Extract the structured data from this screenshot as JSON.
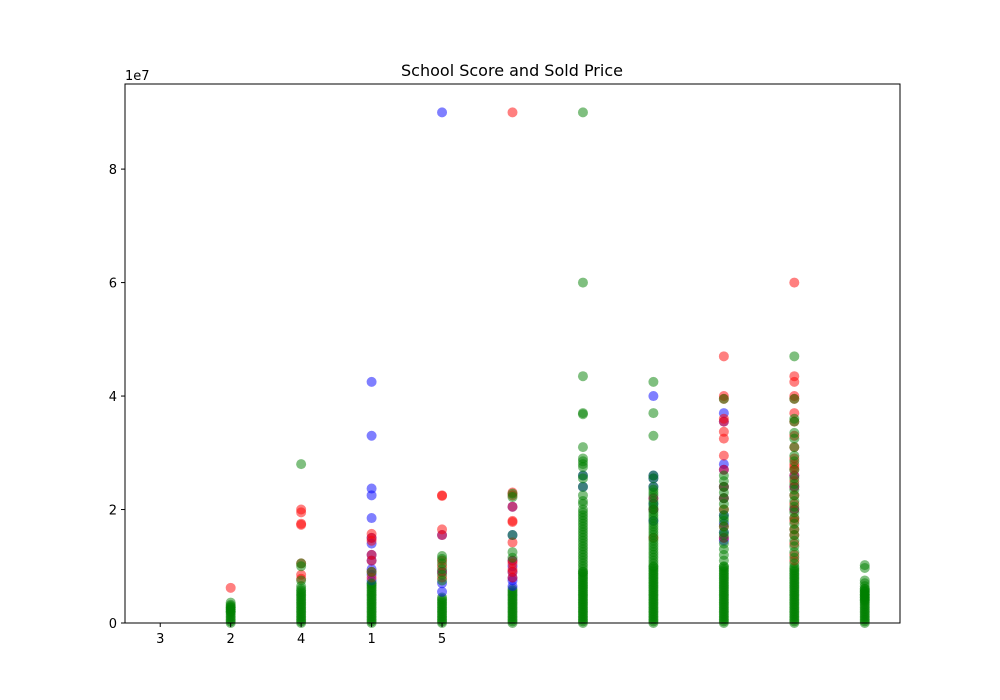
{
  "chart_data": {
    "type": "scatter",
    "title": "School Score and Sold Price",
    "xlabel": "",
    "ylabel": "",
    "y_offset_label": "1e7",
    "xlim": [
      -0.5,
      10.5
    ],
    "ylim": [
      0,
      95000000
    ],
    "x_ticks": [
      {
        "x": 0,
        "label": "3"
      },
      {
        "x": 1,
        "label": "2"
      },
      {
        "x": 2,
        "label": "4"
      },
      {
        "x": 3,
        "label": "1"
      },
      {
        "x": 4,
        "label": "5"
      }
    ],
    "y_ticks": [
      {
        "y": 0,
        "label": "0"
      },
      {
        "y": 20000000,
        "label": "2"
      },
      {
        "y": 40000000,
        "label": "4"
      },
      {
        "y": 60000000,
        "label": "6"
      },
      {
        "y": 80000000,
        "label": "8"
      }
    ],
    "grid": false,
    "series": [
      {
        "color": "#0000ff",
        "opacity": 0.5,
        "points": [
          [
            3,
            42500000
          ],
          [
            3,
            33000000
          ],
          [
            3,
            23700000
          ],
          [
            3,
            22500000
          ],
          [
            3,
            18500000
          ],
          [
            3,
            15000000
          ],
          [
            3,
            14000000
          ],
          [
            3,
            12000000
          ],
          [
            3,
            11000000
          ],
          [
            3,
            9500000
          ],
          [
            3,
            8500000
          ],
          [
            3,
            7500000
          ],
          [
            4,
            90000000
          ],
          [
            4,
            15500000
          ],
          [
            4,
            9000000
          ],
          [
            4,
            7000000
          ],
          [
            4,
            5500000
          ],
          [
            5,
            20500000
          ],
          [
            5,
            15500000
          ],
          [
            5,
            11000000
          ],
          [
            5,
            10000000
          ],
          [
            5,
            9000000
          ],
          [
            5,
            8000000
          ],
          [
            5,
            7500000
          ],
          [
            5,
            6500000
          ],
          [
            6,
            26000000
          ],
          [
            6,
            24000000
          ],
          [
            7,
            40000000
          ],
          [
            7,
            26000000
          ],
          [
            7,
            25500000
          ],
          [
            7,
            24000000
          ],
          [
            7,
            22000000
          ],
          [
            7,
            21000000
          ],
          [
            7,
            20000000
          ],
          [
            7,
            18000000
          ],
          [
            8,
            37000000
          ],
          [
            8,
            35500000
          ],
          [
            8,
            28000000
          ],
          [
            8,
            27000000
          ],
          [
            8,
            24000000
          ],
          [
            8,
            22000000
          ],
          [
            8,
            19000000
          ],
          [
            8,
            17500000
          ],
          [
            8,
            16000000
          ],
          [
            8,
            15000000
          ],
          [
            8,
            14500000
          ],
          [
            9,
            26000000
          ],
          [
            9,
            24000000
          ],
          [
            9,
            20000000
          ]
        ]
      },
      {
        "color": "#ff0000",
        "opacity": 0.5,
        "points": [
          [
            1,
            6200000
          ],
          [
            2,
            20000000
          ],
          [
            2,
            19500000
          ],
          [
            2,
            17500000
          ],
          [
            2,
            17300000
          ],
          [
            2,
            10500000
          ],
          [
            2,
            8500000
          ],
          [
            2,
            7800000
          ],
          [
            3,
            15700000
          ],
          [
            3,
            15000000
          ],
          [
            3,
            14500000
          ],
          [
            3,
            12000000
          ],
          [
            3,
            11000000
          ],
          [
            3,
            9000000
          ],
          [
            3,
            8000000
          ],
          [
            4,
            22500000
          ],
          [
            4,
            22400000
          ],
          [
            4,
            16500000
          ],
          [
            4,
            15500000
          ],
          [
            4,
            11000000
          ],
          [
            4,
            10000000
          ],
          [
            4,
            9000000
          ],
          [
            4,
            8000000
          ],
          [
            5,
            90000000
          ],
          [
            5,
            23000000
          ],
          [
            5,
            22500000
          ],
          [
            5,
            20500000
          ],
          [
            5,
            18000000
          ],
          [
            5,
            17800000
          ],
          [
            5,
            14200000
          ],
          [
            5,
            11000000
          ],
          [
            5,
            10500000
          ],
          [
            5,
            9500000
          ],
          [
            5,
            9000000
          ],
          [
            5,
            8000000
          ],
          [
            7,
            22000000
          ],
          [
            7,
            20000000
          ],
          [
            7,
            15000000
          ],
          [
            8,
            47000000
          ],
          [
            8,
            40000000
          ],
          [
            8,
            39500000
          ],
          [
            8,
            36000000
          ],
          [
            8,
            35500000
          ],
          [
            8,
            33700000
          ],
          [
            8,
            32500000
          ],
          [
            8,
            29500000
          ],
          [
            8,
            27000000
          ],
          [
            8,
            24000000
          ],
          [
            8,
            22000000
          ],
          [
            8,
            20000000
          ],
          [
            8,
            17000000
          ],
          [
            8,
            15000000
          ],
          [
            9,
            60000000
          ],
          [
            9,
            43500000
          ],
          [
            9,
            42500000
          ],
          [
            9,
            40000000
          ],
          [
            9,
            39500000
          ],
          [
            9,
            37000000
          ],
          [
            9,
            35500000
          ],
          [
            9,
            33000000
          ],
          [
            9,
            31000000
          ],
          [
            9,
            29000000
          ],
          [
            9,
            28000000
          ],
          [
            9,
            27500000
          ],
          [
            9,
            27000000
          ],
          [
            9,
            26000000
          ],
          [
            9,
            25000000
          ],
          [
            9,
            24000000
          ],
          [
            9,
            22500000
          ],
          [
            9,
            21000000
          ],
          [
            9,
            20000000
          ],
          [
            9,
            18500000
          ],
          [
            9,
            18000000
          ],
          [
            9,
            16500000
          ],
          [
            9,
            15500000
          ],
          [
            9,
            14000000
          ],
          [
            9,
            12000000
          ],
          [
            9,
            11000000
          ]
        ]
      },
      {
        "color": "#008000",
        "opacity": 0.5,
        "points": [
          [
            1,
            3600000
          ],
          [
            1,
            3200000
          ],
          [
            1,
            2800000
          ],
          [
            1,
            2400000
          ],
          [
            1,
            2000000
          ],
          [
            2,
            28000000
          ],
          [
            2,
            10500000
          ],
          [
            2,
            10000000
          ],
          [
            2,
            7500000
          ],
          [
            2,
            6500000
          ],
          [
            3,
            9000000
          ],
          [
            3,
            7000000
          ],
          [
            4,
            11800000
          ],
          [
            4,
            11300000
          ],
          [
            4,
            10500000
          ],
          [
            4,
            9500000
          ],
          [
            4,
            8500000
          ],
          [
            4,
            7500000
          ],
          [
            5,
            22800000
          ],
          [
            5,
            22200000
          ],
          [
            5,
            15500000
          ],
          [
            5,
            12500000
          ],
          [
            5,
            11500000
          ],
          [
            6,
            90000000
          ],
          [
            6,
            60000000
          ],
          [
            6,
            43500000
          ],
          [
            6,
            37000000
          ],
          [
            6,
            36800000
          ],
          [
            6,
            31000000
          ],
          [
            6,
            29000000
          ],
          [
            6,
            28500000
          ],
          [
            6,
            28000000
          ],
          [
            6,
            27500000
          ],
          [
            6,
            26000000
          ],
          [
            6,
            25500000
          ],
          [
            6,
            24000000
          ],
          [
            6,
            22500000
          ],
          [
            6,
            21500000
          ],
          [
            6,
            21000000
          ],
          [
            6,
            20000000
          ],
          [
            6,
            19500000
          ],
          [
            6,
            19000000
          ],
          [
            6,
            18500000
          ],
          [
            6,
            18000000
          ],
          [
            6,
            17500000
          ],
          [
            6,
            17000000
          ],
          [
            6,
            16500000
          ],
          [
            6,
            16000000
          ],
          [
            6,
            15500000
          ],
          [
            6,
            15000000
          ],
          [
            6,
            14500000
          ],
          [
            6,
            14000000
          ],
          [
            6,
            13500000
          ],
          [
            6,
            13000000
          ],
          [
            6,
            12500000
          ],
          [
            6,
            12000000
          ],
          [
            6,
            11500000
          ],
          [
            6,
            11000000
          ],
          [
            6,
            10500000
          ],
          [
            6,
            10000000
          ],
          [
            6,
            9500000
          ],
          [
            6,
            9000000
          ],
          [
            7,
            42500000
          ],
          [
            7,
            37000000
          ],
          [
            7,
            33000000
          ],
          [
            7,
            26000000
          ],
          [
            7,
            25500000
          ],
          [
            7,
            24000000
          ],
          [
            7,
            23500000
          ],
          [
            7,
            23000000
          ],
          [
            7,
            22500000
          ],
          [
            7,
            21500000
          ],
          [
            7,
            21000000
          ],
          [
            7,
            20500000
          ],
          [
            7,
            20000000
          ],
          [
            7,
            19500000
          ],
          [
            7,
            19000000
          ],
          [
            7,
            18500000
          ],
          [
            7,
            18000000
          ],
          [
            7,
            17500000
          ],
          [
            7,
            17000000
          ],
          [
            7,
            16500000
          ],
          [
            7,
            16000000
          ],
          [
            7,
            15500000
          ],
          [
            7,
            15000000
          ],
          [
            7,
            14500000
          ],
          [
            7,
            14000000
          ],
          [
            7,
            13500000
          ],
          [
            7,
            13000000
          ],
          [
            7,
            12500000
          ],
          [
            7,
            12000000
          ],
          [
            7,
            11500000
          ],
          [
            7,
            11000000
          ],
          [
            7,
            10500000
          ],
          [
            7,
            10000000
          ],
          [
            8,
            39500000
          ],
          [
            8,
            26000000
          ],
          [
            8,
            25000000
          ],
          [
            8,
            24000000
          ],
          [
            8,
            23000000
          ],
          [
            8,
            22000000
          ],
          [
            8,
            21000000
          ],
          [
            8,
            20000000
          ],
          [
            8,
            19000000
          ],
          [
            8,
            18500000
          ],
          [
            8,
            18000000
          ],
          [
            8,
            17000000
          ],
          [
            8,
            16000000
          ],
          [
            8,
            15500000
          ],
          [
            8,
            14000000
          ],
          [
            8,
            13000000
          ],
          [
            8,
            12000000
          ],
          [
            8,
            11000000
          ],
          [
            8,
            10000000
          ],
          [
            9,
            47000000
          ],
          [
            9,
            39500000
          ],
          [
            9,
            36000000
          ],
          [
            9,
            35500000
          ],
          [
            9,
            33500000
          ],
          [
            9,
            32500000
          ],
          [
            9,
            31000000
          ],
          [
            9,
            29500000
          ],
          [
            9,
            28500000
          ],
          [
            9,
            27000000
          ],
          [
            9,
            25500000
          ],
          [
            9,
            24500000
          ],
          [
            9,
            23500000
          ],
          [
            9,
            22500000
          ],
          [
            9,
            21500000
          ],
          [
            9,
            20500000
          ],
          [
            9,
            19500000
          ],
          [
            9,
            18500000
          ],
          [
            9,
            17500000
          ],
          [
            9,
            16500000
          ],
          [
            9,
            15500000
          ],
          [
            9,
            14500000
          ],
          [
            9,
            13500000
          ],
          [
            9,
            12500000
          ],
          [
            9,
            11500000
          ],
          [
            9,
            10500000
          ],
          [
            10,
            10200000
          ],
          [
            10,
            9700000
          ],
          [
            10,
            7500000
          ],
          [
            10,
            7000000
          ],
          [
            10,
            6500000
          ],
          [
            10,
            6000000
          ],
          [
            10,
            5500000
          ],
          [
            10,
            5000000
          ],
          [
            10,
            4500000
          ],
          [
            10,
            4000000
          ]
        ]
      }
    ],
    "dense_columns": [
      {
        "x": 1,
        "color": "#008000",
        "top": 3000000
      },
      {
        "x": 2,
        "color": "#008000",
        "top": 6000000
      },
      {
        "x": 3,
        "color": "#008000",
        "top": 7000000
      },
      {
        "x": 4,
        "color": "#008000",
        "top": 4500000
      },
      {
        "x": 5,
        "color": "#008000",
        "top": 6000000
      },
      {
        "x": 6,
        "color": "#008000",
        "top": 9000000
      },
      {
        "x": 7,
        "color": "#008000",
        "top": 10000000
      },
      {
        "x": 8,
        "color": "#008000",
        "top": 10000000
      },
      {
        "x": 9,
        "color": "#008000",
        "top": 10000000
      },
      {
        "x": 10,
        "color": "#008000",
        "top": 6000000
      }
    ]
  }
}
